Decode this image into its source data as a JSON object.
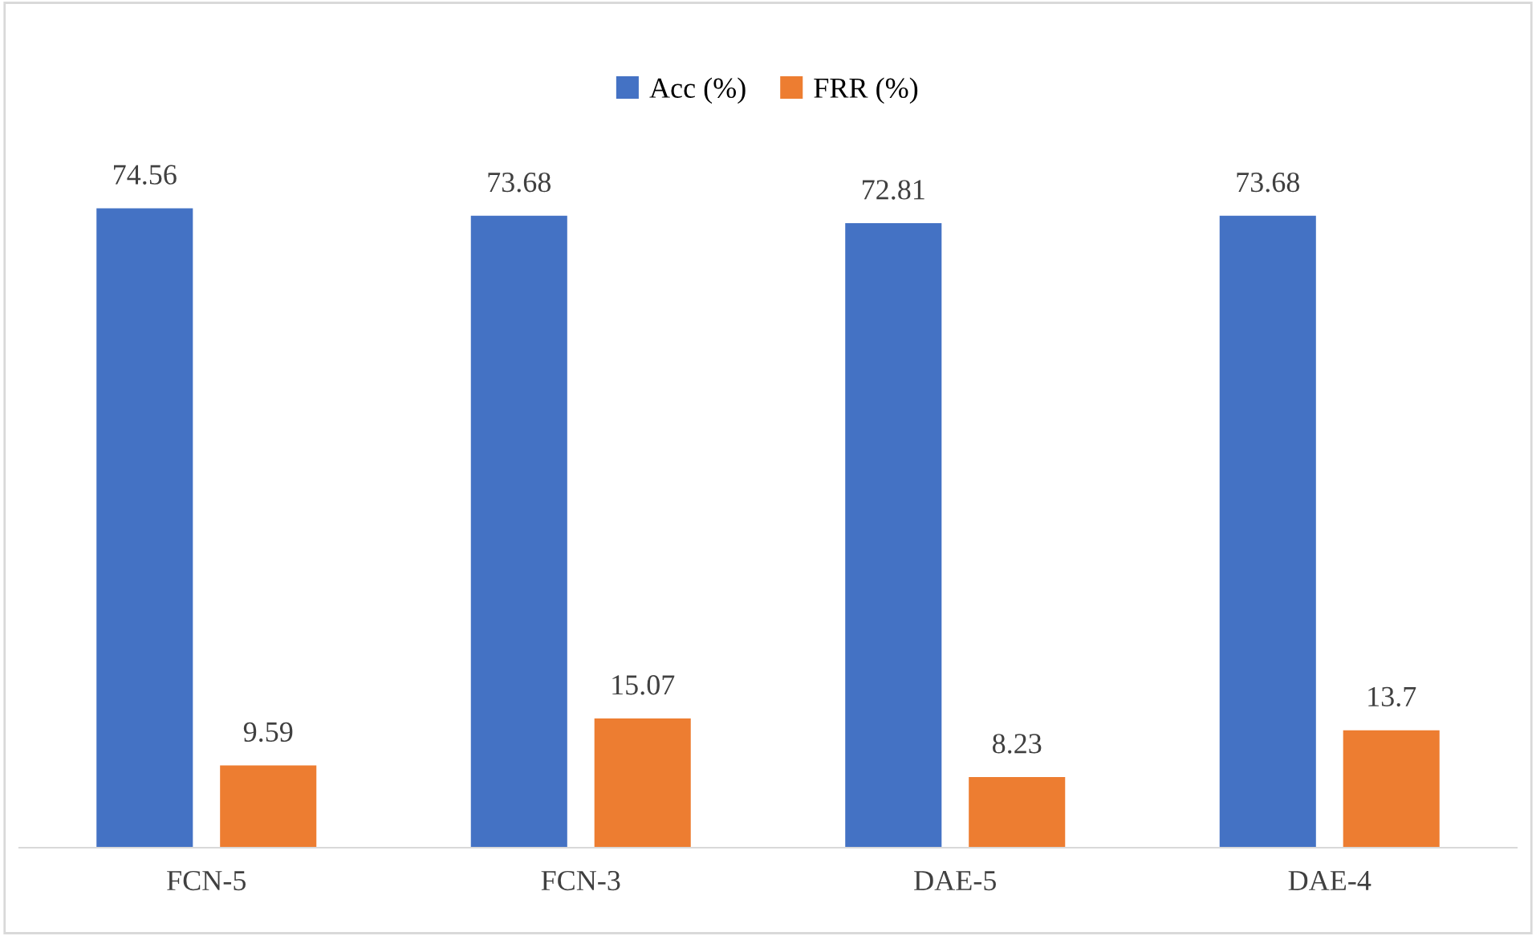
{
  "chart_data": {
    "type": "bar",
    "categories": [
      "FCN-5",
      "FCN-3",
      "DAE-5",
      "DAE-4"
    ],
    "series": [
      {
        "name": "Acc (%)",
        "color": "#4472c4",
        "values": [
          74.56,
          73.68,
          72.81,
          73.68
        ]
      },
      {
        "name": "FRR (%)",
        "color": "#ed7d31",
        "values": [
          9.59,
          15.07,
          8.23,
          13.7
        ]
      }
    ],
    "data_labels": true,
    "legend": "top"
  }
}
